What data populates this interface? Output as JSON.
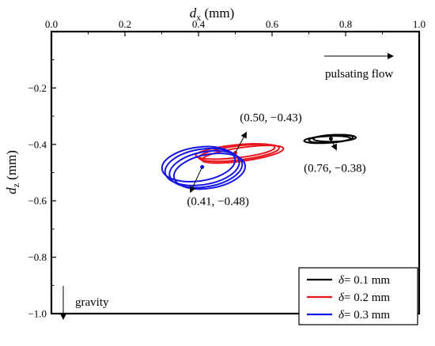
{
  "chart_data": {
    "type": "scatter",
    "xlabel_main": "d",
    "xlabel_sub": "x",
    "xlabel_unit": " (mm)",
    "ylabel_main": "d",
    "ylabel_sub": "z",
    "ylabel_unit": " (mm)",
    "xlim": [
      0.0,
      1.0
    ],
    "ylim": [
      -1.0,
      0.0
    ],
    "x_ticks": [
      0.0,
      0.2,
      0.4,
      0.6,
      0.8,
      1.0
    ],
    "x_tick_labels": [
      "0.0",
      "0.2",
      "0.4",
      "0.6",
      "0.8",
      "1.0"
    ],
    "y_ticks": [
      -1.0,
      -0.8,
      -0.6,
      -0.4,
      -0.2
    ],
    "y_tick_labels": [
      "−1.0",
      "−0.8",
      "−0.6",
      "−0.4",
      "−0.2"
    ],
    "x_axis_position": "top",
    "grid": false,
    "legend_position": "bottom-right",
    "series": [
      {
        "name": "= 0.1 mm",
        "legend_symbol": "δ",
        "color": "#000000",
        "center": [
          0.76,
          -0.38
        ],
        "label": "(0.76, −0.38)",
        "ellipses": [
          {
            "cx": 0.75,
            "cy": -0.383,
            "rx": 0.063,
            "ry": 0.012,
            "angle_deg": -3
          },
          {
            "cx": 0.76,
            "cy": -0.38,
            "rx": 0.06,
            "ry": 0.013,
            "angle_deg": -4
          },
          {
            "cx": 0.77,
            "cy": -0.378,
            "rx": 0.058,
            "ry": 0.012,
            "angle_deg": -2
          }
        ]
      },
      {
        "name": "= 0.2 mm",
        "legend_symbol": "δ",
        "color": "#e8141c",
        "center": [
          0.5,
          -0.43
        ],
        "label": "(0.50, −0.43)",
        "ellipses": [
          {
            "cx": 0.5,
            "cy": -0.425,
            "rx": 0.108,
            "ry": 0.023,
            "angle_deg": -6
          },
          {
            "cx": 0.51,
            "cy": -0.43,
            "rx": 0.11,
            "ry": 0.025,
            "angle_deg": -7
          },
          {
            "cx": 0.52,
            "cy": -0.435,
            "rx": 0.112,
            "ry": 0.024,
            "angle_deg": -8
          }
        ]
      },
      {
        "name": "= 0.3 mm",
        "legend_symbol": "δ",
        "color": "#1414e6",
        "center": [
          0.41,
          -0.48
        ],
        "label": "(0.41, −0.48)",
        "ellipses": [
          {
            "cx": 0.4,
            "cy": -0.47,
            "rx": 0.1,
            "ry": 0.06,
            "angle_deg": -8
          },
          {
            "cx": 0.41,
            "cy": -0.48,
            "rx": 0.102,
            "ry": 0.063,
            "angle_deg": -9
          },
          {
            "cx": 0.42,
            "cy": -0.488,
            "rx": 0.1,
            "ry": 0.062,
            "angle_deg": -10
          },
          {
            "cx": 0.43,
            "cy": -0.495,
            "rx": 0.098,
            "ry": 0.06,
            "angle_deg": -10
          }
        ]
      }
    ],
    "annotations": {
      "flow_label": "pulsating flow",
      "gravity_label": "gravity"
    }
  }
}
